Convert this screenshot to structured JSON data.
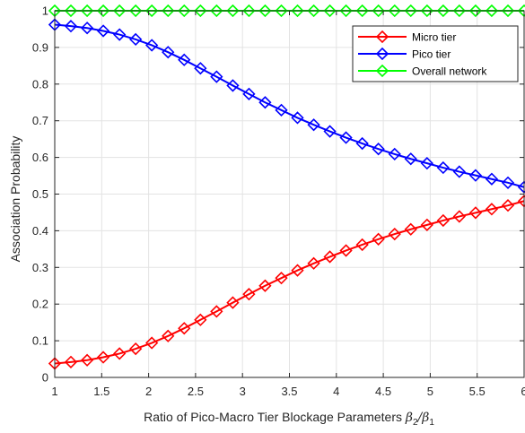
{
  "chart_data": {
    "type": "line",
    "title": "",
    "xlabel_main": "Ratio of Pico-Macro Tier Blockage Parameters ",
    "xlabel_math": [
      "β",
      "2",
      "/β",
      "1"
    ],
    "ylabel": "Association Probability",
    "xlim": [
      1,
      6
    ],
    "ylim": [
      0,
      1
    ],
    "xticks": [
      1,
      1.5,
      2,
      2.5,
      3,
      3.5,
      4,
      4.5,
      5,
      5.5,
      6
    ],
    "yticks": [
      0,
      0.1,
      0.2,
      0.3,
      0.4,
      0.5,
      0.6,
      0.7,
      0.8,
      0.9,
      1
    ],
    "xtick_labels": [
      "1",
      "1.5",
      "2",
      "2.5",
      "3",
      "3.5",
      "4",
      "4.5",
      "5",
      "5.5",
      "6"
    ],
    "ytick_labels": [
      "0",
      "0.1",
      "0.2",
      "0.3",
      "0.4",
      "0.5",
      "0.6",
      "0.7",
      "0.8",
      "0.9",
      "1"
    ],
    "grid": true,
    "legend_position": "top-right",
    "x": [
      1.0,
      1.172,
      1.345,
      1.517,
      1.69,
      1.862,
      2.034,
      2.207,
      2.379,
      2.552,
      2.724,
      2.897,
      3.069,
      3.241,
      3.414,
      3.586,
      3.759,
      3.931,
      4.103,
      4.276,
      4.448,
      4.621,
      4.793,
      4.966,
      5.138,
      5.31,
      5.483,
      5.655,
      5.828,
      6.0
    ],
    "series": [
      {
        "name": "Micro tier",
        "color": "#ff0000",
        "values": [
          0.038,
          0.042,
          0.047,
          0.055,
          0.065,
          0.078,
          0.094,
          0.113,
          0.134,
          0.157,
          0.18,
          0.204,
          0.227,
          0.25,
          0.271,
          0.292,
          0.311,
          0.329,
          0.346,
          0.362,
          0.377,
          0.391,
          0.404,
          0.416,
          0.428,
          0.439,
          0.449,
          0.459,
          0.469,
          0.481
        ]
      },
      {
        "name": "Pico tier",
        "color": "#0000ff",
        "values": [
          0.962,
          0.958,
          0.953,
          0.945,
          0.935,
          0.922,
          0.906,
          0.887,
          0.866,
          0.843,
          0.82,
          0.796,
          0.773,
          0.75,
          0.729,
          0.708,
          0.689,
          0.671,
          0.654,
          0.638,
          0.623,
          0.609,
          0.596,
          0.584,
          0.572,
          0.561,
          0.551,
          0.541,
          0.531,
          0.519
        ]
      },
      {
        "name": "Overall network",
        "color": "#00ff00",
        "values": [
          1,
          1,
          1,
          1,
          1,
          1,
          1,
          1,
          1,
          1,
          1,
          1,
          1,
          1,
          1,
          1,
          1,
          1,
          1,
          1,
          1,
          1,
          1,
          1,
          1,
          1,
          1,
          1,
          1,
          1
        ]
      }
    ]
  }
}
